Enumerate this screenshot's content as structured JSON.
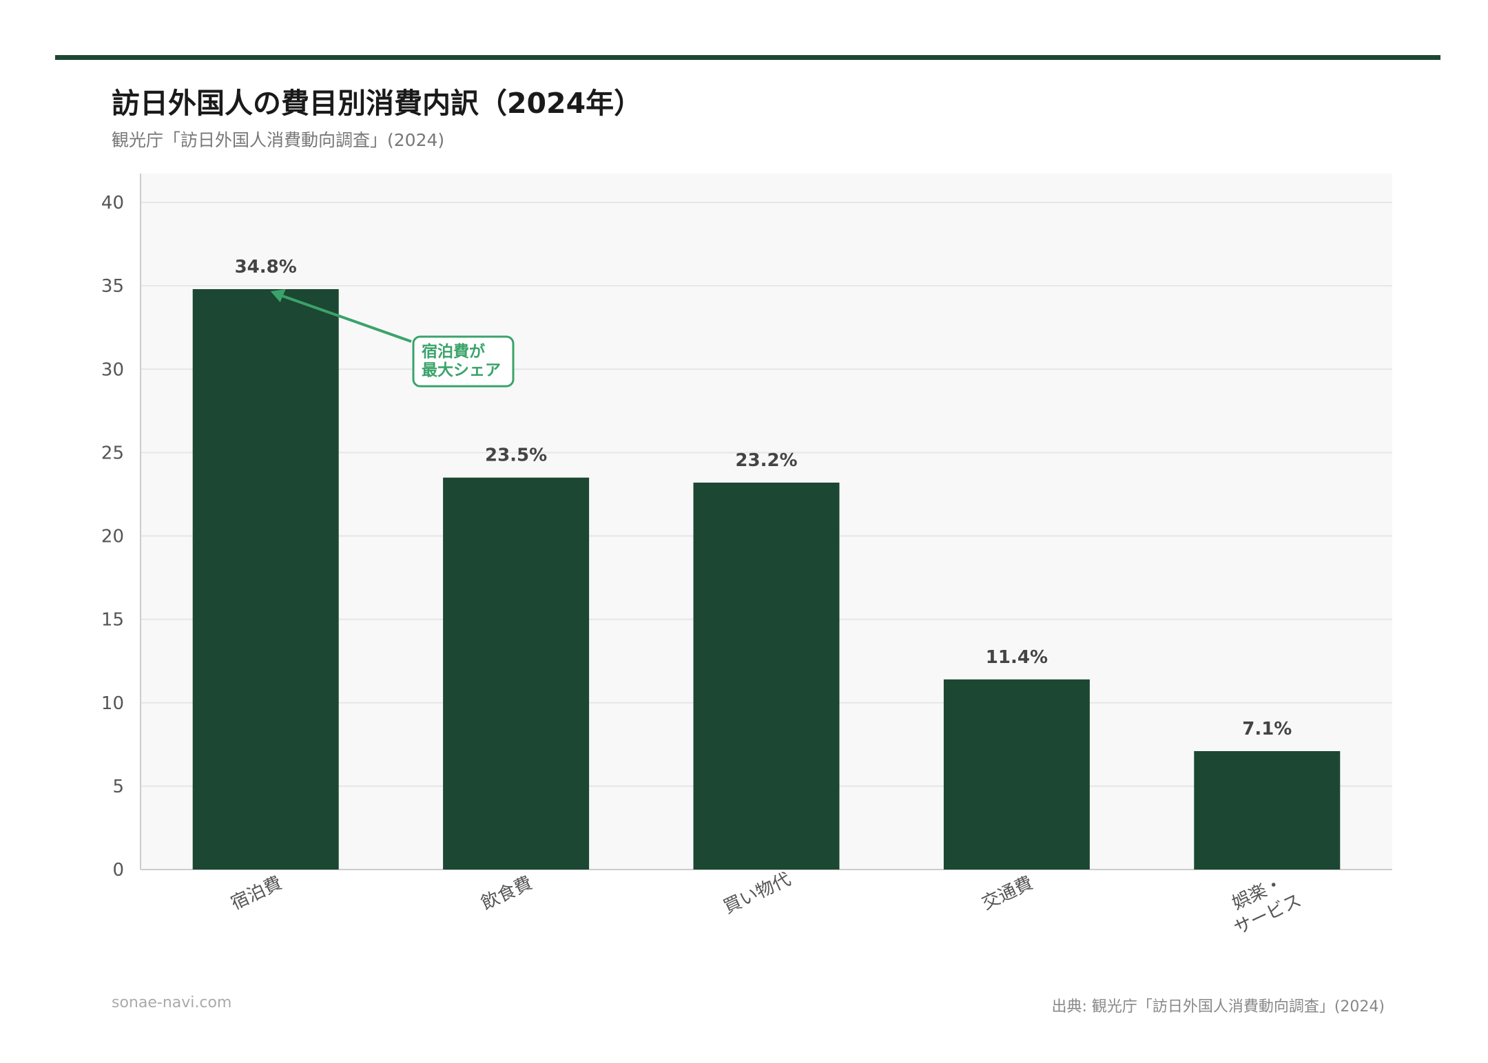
{
  "title": "訪日外国人の費目別消費内訳（2024年）",
  "subtitle": "観光庁「訪日外国人消費動向調査」(2024)",
  "footer": {
    "site": "sonae-navi.com",
    "source": "出典: 観光庁「訪日外国人消費動向調査」(2024)"
  },
  "colors": {
    "bar": "#1c4733",
    "accent": "#3aa36a",
    "plot_bg": "#f8f8f8"
  },
  "chart_data": {
    "type": "bar",
    "categories": [
      "宿泊費",
      "飲食費",
      "買い物代",
      "交通費",
      "娯楽・\nサービス"
    ],
    "values": [
      34.8,
      23.5,
      23.2,
      11.4,
      7.1
    ],
    "data_labels": [
      "34.8%",
      "23.5%",
      "23.2%",
      "11.4%",
      "7.1%"
    ],
    "ylim": [
      0,
      40
    ],
    "yticks": [
      0,
      5,
      10,
      15,
      20,
      25,
      30,
      35,
      40
    ],
    "grid": true,
    "annotation": {
      "text": [
        "宿泊費が",
        "最大シェア"
      ],
      "target_category": "宿泊費"
    }
  }
}
